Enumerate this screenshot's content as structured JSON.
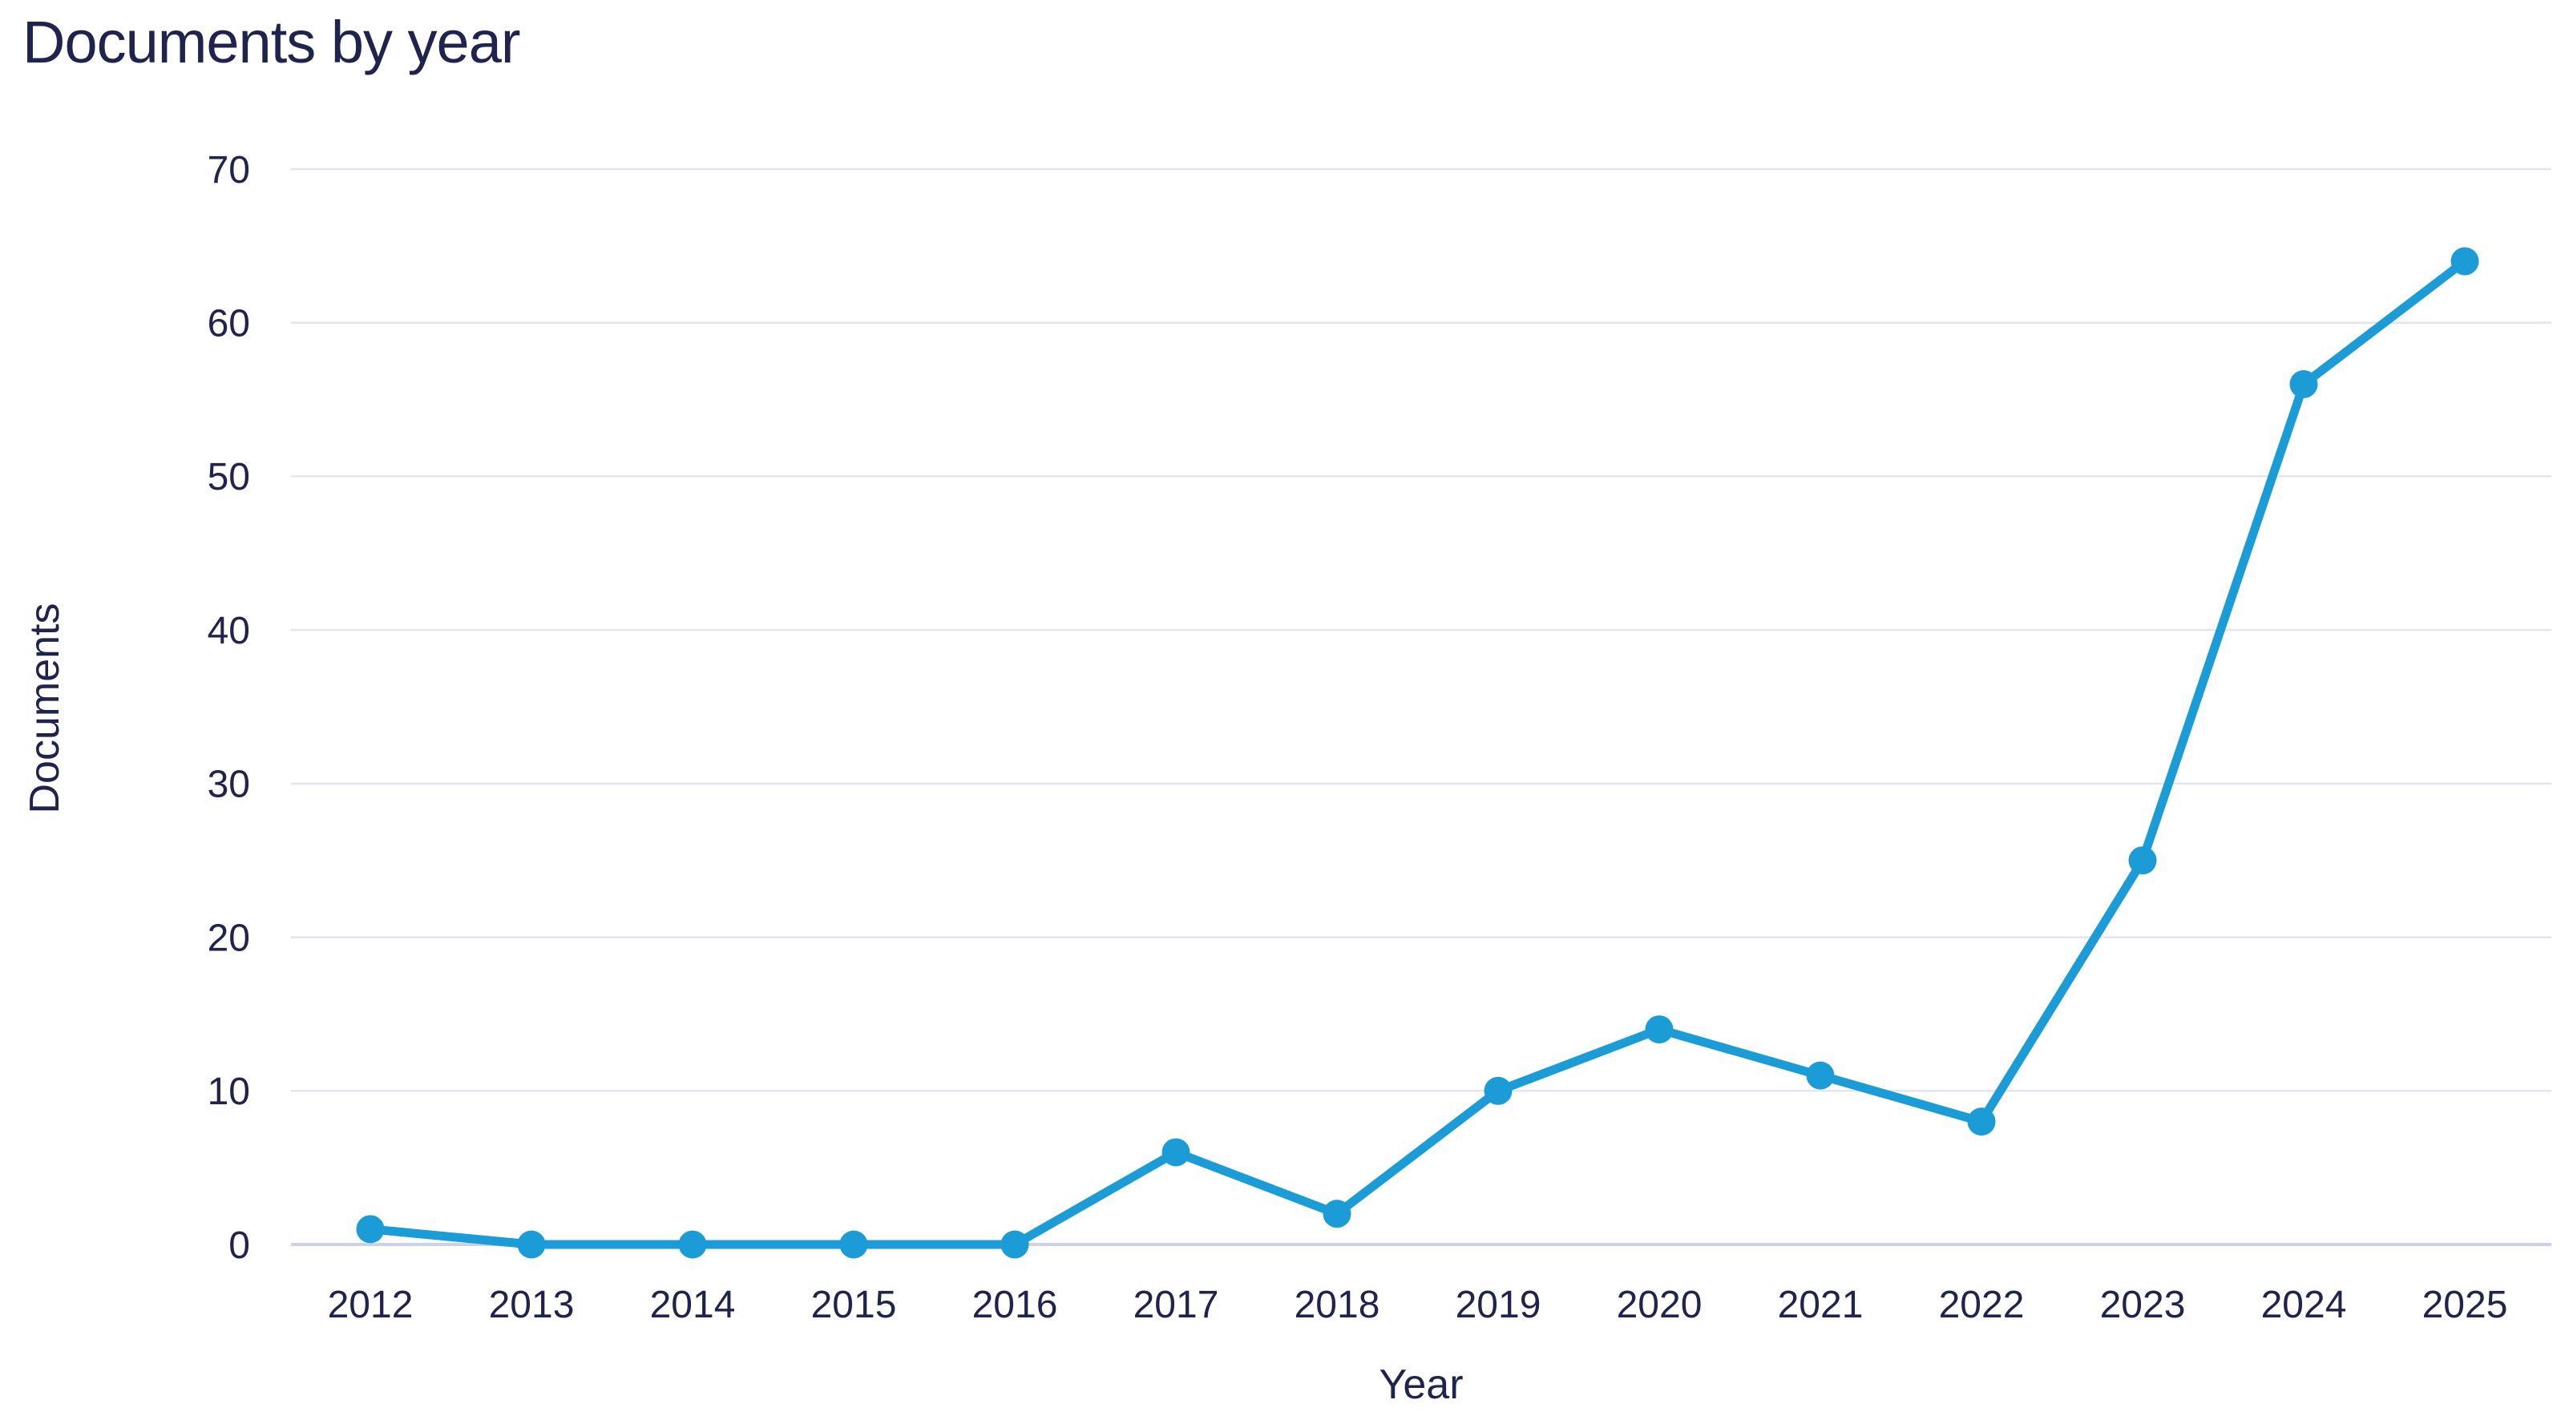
{
  "chart_data": {
    "type": "line",
    "title": "Documents by year",
    "xlabel": "Year",
    "ylabel": "Documents",
    "x": [
      "2012",
      "2013",
      "2014",
      "2015",
      "2016",
      "2017",
      "2018",
      "2019",
      "2020",
      "2021",
      "2022",
      "2023",
      "2024",
      "2025"
    ],
    "series": [
      {
        "name": "Documents",
        "values": [
          1,
          0,
          0,
          0,
          0,
          6,
          2,
          10,
          14,
          11,
          8,
          25,
          56,
          64
        ]
      }
    ],
    "ylim": [
      0,
      70
    ],
    "yticks": [
      0,
      10,
      20,
      30,
      40,
      50,
      60,
      70
    ],
    "grid": "horizontal",
    "legend": "none",
    "colors": {
      "line": "#1c9cd6",
      "marker": "#1c9cd6",
      "grid": "#e3e4ec",
      "baseline": "#ccd2e6",
      "text": "#20234e",
      "background": "#ffffff"
    }
  }
}
